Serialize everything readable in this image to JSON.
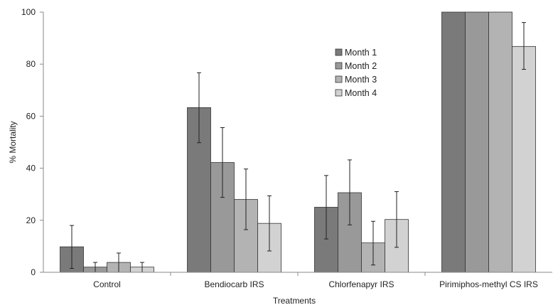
{
  "chart_data": {
    "type": "bar",
    "title": "",
    "xlabel": "Treatments",
    "ylabel": "% Mortality",
    "ylim": [
      0,
      100
    ],
    "yticks": [
      0,
      20,
      40,
      60,
      80,
      100
    ],
    "grid": false,
    "legend_position": "top-center",
    "categories": [
      "Control",
      "Bendiocarb IRS",
      "Chlorfenapyr IRS",
      "Pirimiphos-methyl CS IRS"
    ],
    "series": [
      {
        "name": "Month 1",
        "color": "#7a7a7a",
        "values": [
          9.8,
          63.3,
          25.0,
          100
        ],
        "error_low": [
          1.5,
          49.8,
          12.8,
          null
        ],
        "error_high": [
          18.0,
          76.7,
          37.2,
          null
        ]
      },
      {
        "name": "Month 2",
        "color": "#999999",
        "values": [
          2.0,
          42.2,
          30.6,
          100
        ],
        "error_low": [
          0.0,
          28.8,
          18.2,
          null
        ],
        "error_high": [
          3.8,
          55.6,
          43.2,
          null
        ]
      },
      {
        "name": "Month 3",
        "color": "#b3b3b3",
        "values": [
          3.8,
          28.0,
          11.3,
          100
        ],
        "error_low": [
          0.0,
          16.4,
          2.8,
          null
        ],
        "error_high": [
          7.4,
          39.7,
          19.6,
          null
        ]
      },
      {
        "name": "Month 4",
        "color": "#d2d2d2",
        "values": [
          2.0,
          18.8,
          20.3,
          86.8
        ],
        "error_low": [
          0.0,
          8.2,
          9.6,
          78.0
        ],
        "error_high": [
          3.8,
          29.4,
          31.0,
          96.0
        ]
      }
    ]
  }
}
